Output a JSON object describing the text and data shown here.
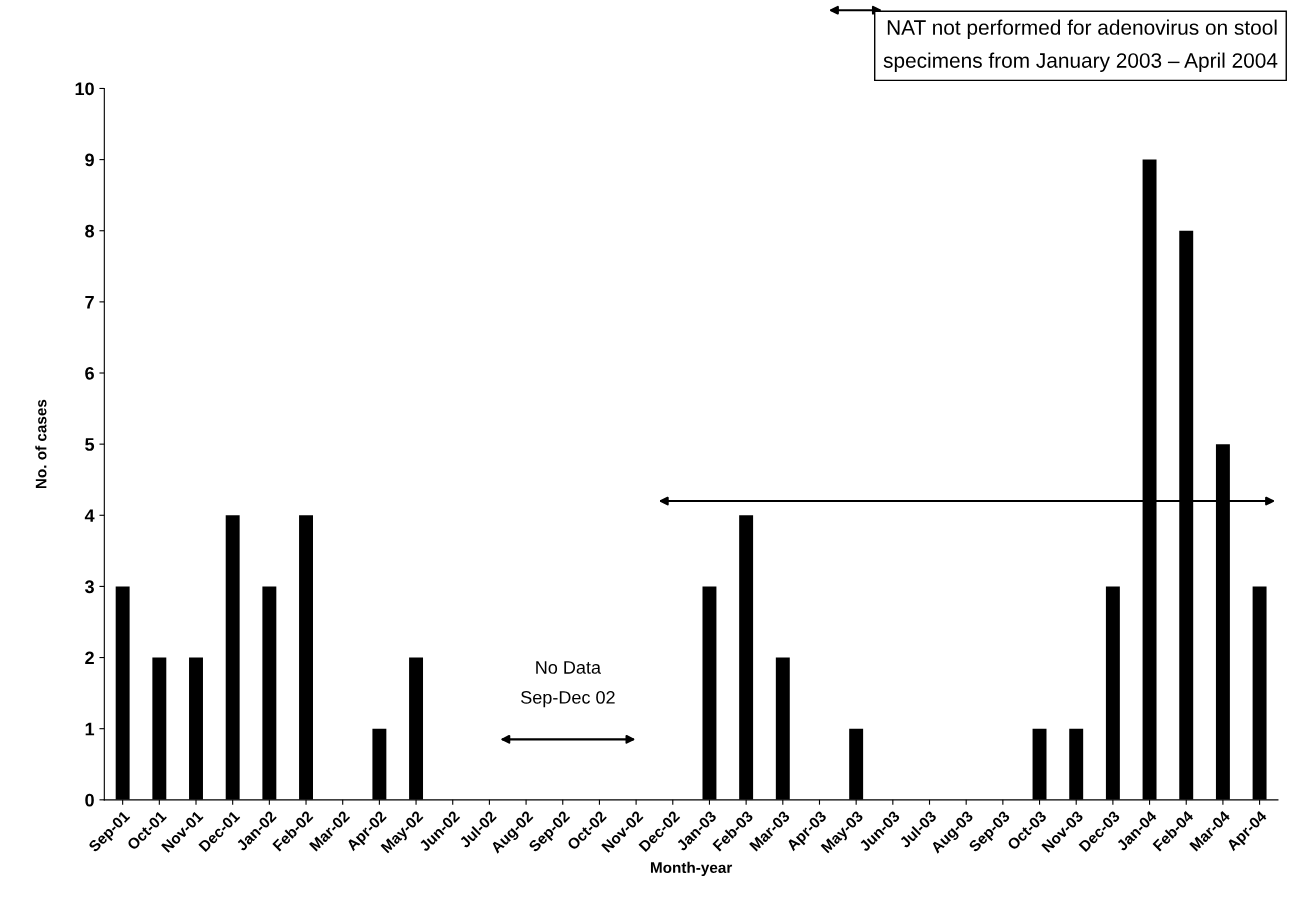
{
  "chart_data": {
    "type": "bar",
    "categories": [
      "Sep-01",
      "Oct-01",
      "Nov-01",
      "Dec-01",
      "Jan-02",
      "Feb-02",
      "Mar-02",
      "Apr-02",
      "May-02",
      "Jun-02",
      "Jul-02",
      "Aug-02",
      "Sep-02",
      "Oct-02",
      "Nov-02",
      "Dec-02",
      "Jan-03",
      "Feb-03",
      "Mar-03",
      "Apr-03",
      "May-03",
      "Jun-03",
      "Jul-03",
      "Aug-03",
      "Sep-03",
      "Oct-03",
      "Nov-03",
      "Dec-03",
      "Jan-04",
      "Feb-04",
      "Mar-04",
      "Apr-04"
    ],
    "values": [
      3,
      2,
      2,
      4,
      3,
      4,
      0,
      1,
      2,
      0,
      0,
      0,
      0,
      0,
      0,
      0,
      3,
      4,
      2,
      0,
      1,
      0,
      0,
      0,
      0,
      1,
      1,
      3,
      9,
      8,
      5,
      3
    ],
    "color": "#000000",
    "xlabel": "Month-year",
    "ylabel": "No. of cases",
    "ylim": [
      0,
      10
    ],
    "yticks": [
      0,
      1,
      2,
      3,
      4,
      5,
      6,
      7,
      8,
      9,
      10
    ],
    "annotations": [
      "No Data\nSep-Dec 02",
      "NAT not performed for adenovirus on stool\nspecimens from January 2003 – April 2004"
    ],
    "grid": false
  }
}
